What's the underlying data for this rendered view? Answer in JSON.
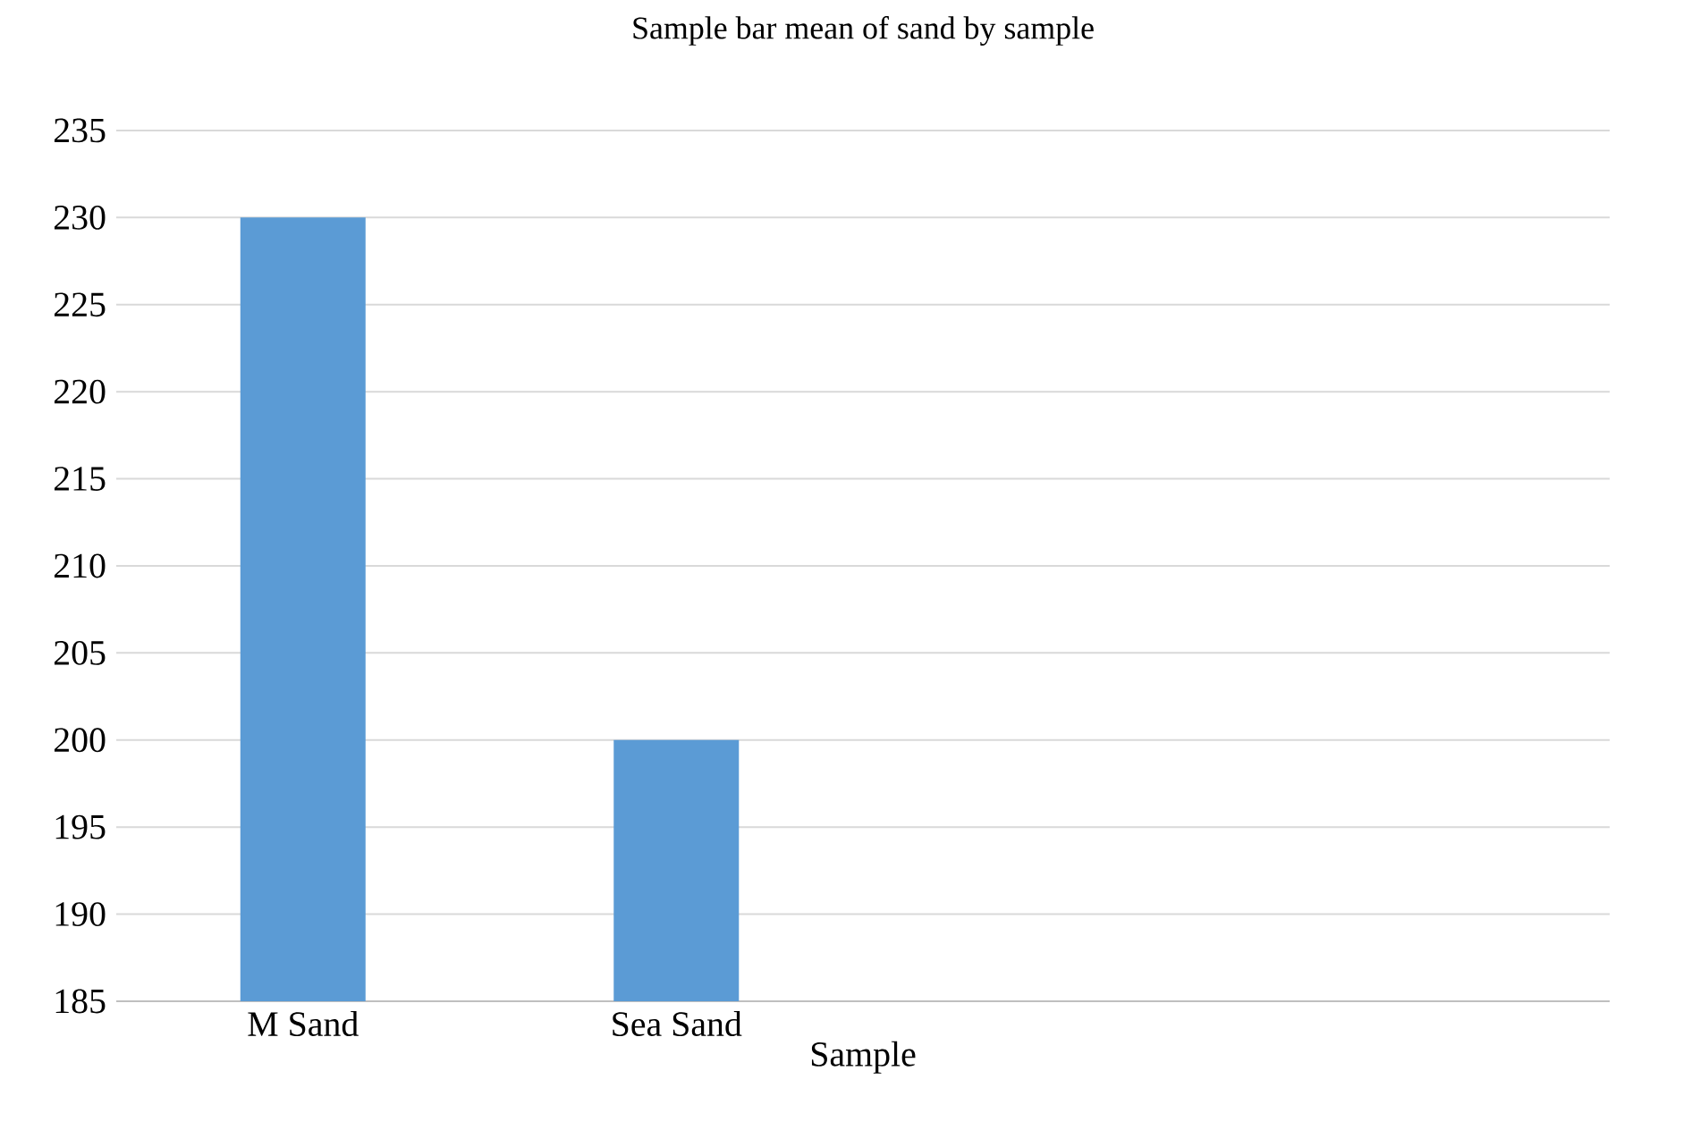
{
  "chart_data": {
    "type": "bar",
    "title": "Sample bar mean of sand by sample",
    "xlabel": "Sample",
    "categories": [
      "M Sand",
      "Sea Sand",
      null,
      null
    ],
    "values": [
      230,
      200,
      null,
      null
    ],
    "color": "#5b9bd5",
    "ylim": [
      185,
      235
    ],
    "yticks": [
      185,
      190,
      195,
      200,
      205,
      210,
      215,
      220,
      225,
      230,
      235
    ],
    "grid": "y"
  }
}
